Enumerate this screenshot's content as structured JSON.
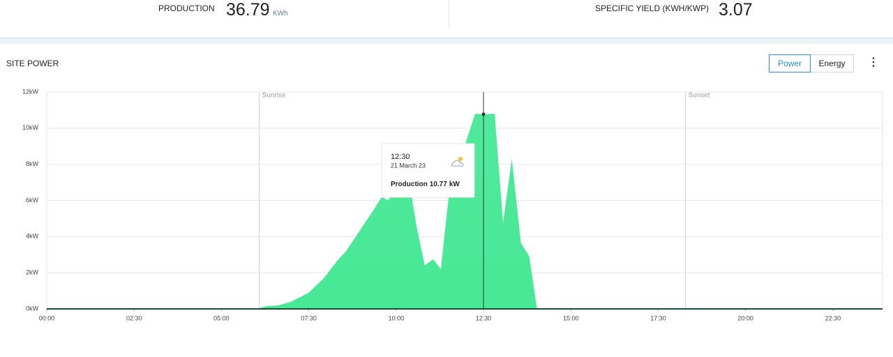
{
  "header": {
    "production": {
      "label": "PRODUCTION",
      "value": 36.79,
      "unit": "KWh"
    },
    "specific_yield": {
      "label": "SPECIFIC YIELD (KWH/KWP)",
      "value": 3.07
    }
  },
  "panel": {
    "title": "SITE POWER",
    "tabs": [
      "Power",
      "Energy"
    ]
  },
  "chart_data": {
    "type": "area",
    "x": [
      0,
      6.0,
      6.3,
      6.64,
      7.0,
      7.5,
      7.93,
      8.33,
      8.57,
      8.93,
      9.33,
      9.59,
      9.77,
      10.13,
      10.42,
      10.58,
      10.82,
      11.06,
      11.28,
      11.52,
      11.82,
      12.26,
      12.5,
      12.82,
      13.06,
      13.31,
      13.57,
      13.81,
      14.03,
      23.92
    ],
    "values": [
      0,
      0,
      0.15,
      0.2,
      0.4,
      0.9,
      1.7,
      2.7,
      3.2,
      4.25,
      5.4,
      6.2,
      6.0,
      7.1,
      6.5,
      4.6,
      2.4,
      2.75,
      2.2,
      6.5,
      8.2,
      10.8,
      10.77,
      10.8,
      4.75,
      8.3,
      3.65,
      2.9,
      0,
      0
    ],
    "color": "#47e896",
    "xlim": [
      0,
      23.92
    ],
    "xticks": [
      {
        "value": 0,
        "label": "00:00"
      },
      {
        "value": 2.5,
        "label": "02:30"
      },
      {
        "value": 5,
        "label": "05:00"
      },
      {
        "value": 7.5,
        "label": "07:30"
      },
      {
        "value": 10,
        "label": "10:00"
      },
      {
        "value": 12.5,
        "label": "12:30"
      },
      {
        "value": 15,
        "label": "15:00"
      },
      {
        "value": 17.5,
        "label": "17:30"
      },
      {
        "value": 20,
        "label": "20:00"
      },
      {
        "value": 22.5,
        "label": "22:30"
      }
    ],
    "ylim": [
      0,
      12
    ],
    "yticks": [
      {
        "value": 0,
        "label": "0kW"
      },
      {
        "value": 2,
        "label": "2kW"
      },
      {
        "value": 4,
        "label": "4kW"
      },
      {
        "value": 6,
        "label": "6kW"
      },
      {
        "value": 8,
        "label": "8kW"
      },
      {
        "value": 10,
        "label": "10kW"
      },
      {
        "value": 12,
        "label": "12kW"
      }
    ],
    "grid": true,
    "annotations": [
      {
        "label": "Sunrise",
        "x": 6.08
      },
      {
        "label": "Sunset",
        "x": 18.28
      }
    ],
    "tooltip": {
      "x": 12.5,
      "time": "12:30",
      "date": "21 March 23",
      "label": "Production",
      "value": 10.77,
      "unit": "kW"
    }
  }
}
